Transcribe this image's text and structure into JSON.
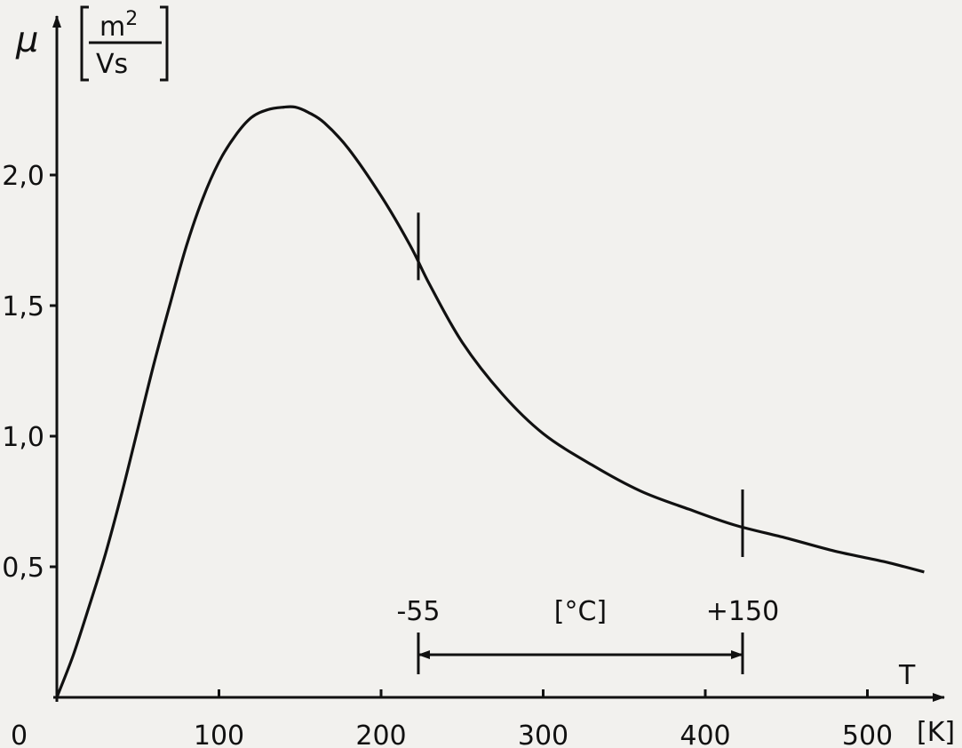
{
  "chart_data": {
    "type": "line",
    "title": "",
    "ylabel": "μ",
    "yunit_num": "m",
    "yunit_exp": "2",
    "yunit_den": "Vs",
    "xlabel": "T",
    "xunit": "[K]",
    "origin_label": "0",
    "xlim": [
      0,
      540
    ],
    "ylim": [
      0,
      2.5
    ],
    "xticks": [
      100,
      200,
      300,
      400,
      500
    ],
    "xtick_labels": [
      "100",
      "200",
      "300",
      "400",
      "500"
    ],
    "yticks": [
      0.5,
      1.0,
      1.5,
      2.0
    ],
    "ytick_labels": [
      "0,5",
      "1,0",
      "1,5",
      "2,0"
    ],
    "grid": false,
    "series": [
      {
        "x": [
          0,
          10,
          20,
          30,
          40,
          50,
          60,
          70,
          80,
          90,
          100,
          110,
          120,
          130,
          140,
          147,
          155,
          165,
          180,
          200,
          218,
          230,
          250,
          275,
          300,
          330,
          360,
          390,
          418,
          450,
          480,
          510,
          535
        ],
        "y": [
          0.0,
          0.16,
          0.35,
          0.55,
          0.78,
          1.03,
          1.28,
          1.51,
          1.73,
          1.91,
          2.05,
          2.15,
          2.22,
          2.25,
          2.26,
          2.26,
          2.24,
          2.2,
          2.1,
          1.92,
          1.73,
          1.58,
          1.36,
          1.16,
          1.01,
          0.89,
          0.79,
          0.72,
          0.66,
          0.61,
          0.56,
          0.52,
          0.48
        ]
      }
    ],
    "markers": [
      {
        "x": 223,
        "y": 1.72
      },
      {
        "x": 423,
        "y": 0.66
      }
    ],
    "range_annotation": {
      "from_x": 223,
      "to_x": 423,
      "from_label": "-55",
      "to_label": "+150",
      "unit_label": "[°C]"
    }
  }
}
